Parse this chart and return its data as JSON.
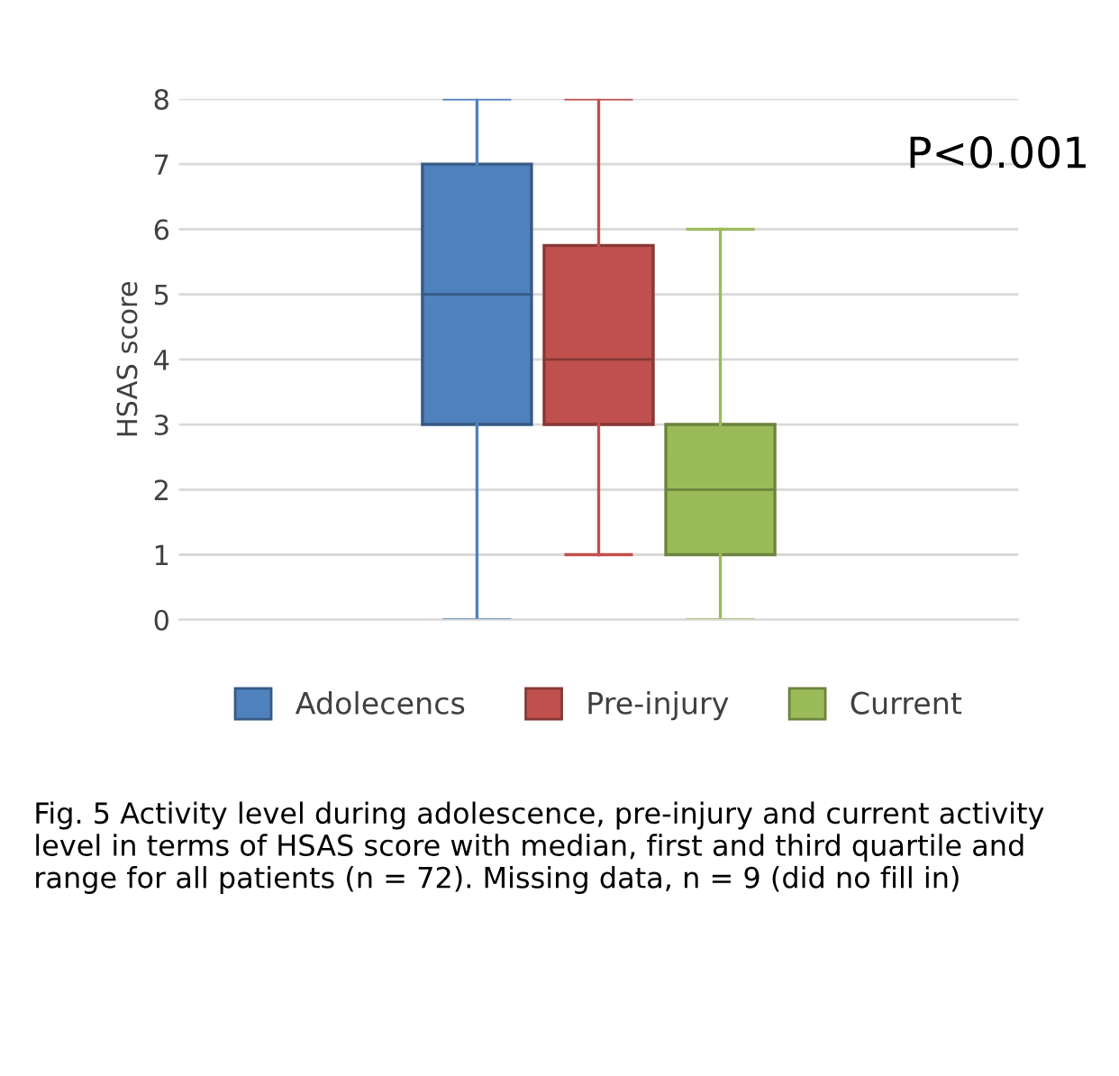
{
  "chart_data": {
    "type": "box",
    "categories": [
      null
    ],
    "ylabel": "HSAS score",
    "ylim": [
      0,
      8
    ],
    "yticks": [
      0,
      1,
      2,
      3,
      4,
      5,
      6,
      7,
      8
    ],
    "grid": "y",
    "legend": "bottom",
    "series": [
      {
        "name": "Adolecencs",
        "color": "#4f81bd",
        "boxes": [
          {
            "low": 0,
            "q1": 3,
            "median": 5,
            "q3": 7,
            "high": 8
          }
        ]
      },
      {
        "name": "Pre-injury",
        "color": "#c0504d",
        "boxes": [
          {
            "low": 1,
            "q1": 3,
            "median": 4,
            "q3": 5.75,
            "high": 8
          }
        ]
      },
      {
        "name": "Current",
        "color": "#9bbb59",
        "boxes": [
          {
            "low": 0,
            "q1": 1,
            "median": 2,
            "q3": 3,
            "high": 6
          }
        ]
      }
    ],
    "annotations": [
      "P<0.001",
      "Fig. 5 Activity level during adolescence, pre-injury and current activity level in terms of HSAS score with median, first and third quartile and range for all patients (n = 72). Missing data, n = 9 (did no fill in)"
    ]
  }
}
